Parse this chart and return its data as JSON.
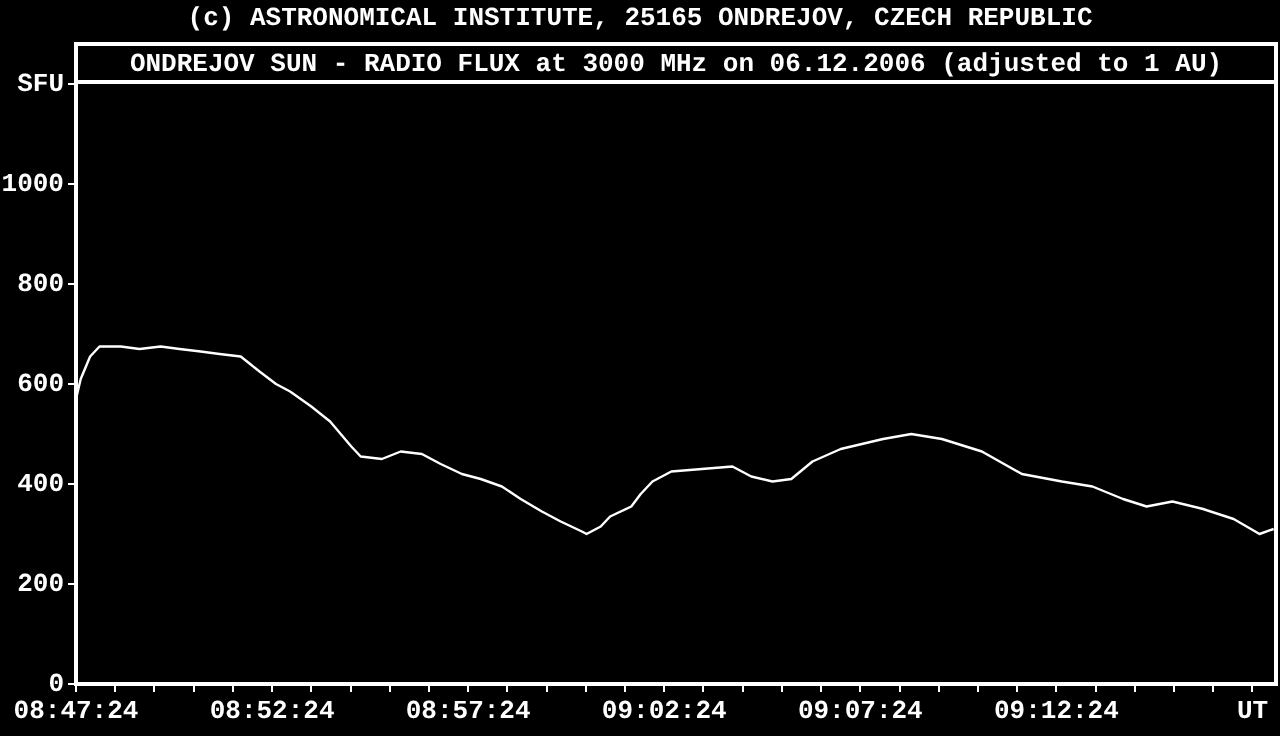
{
  "chart_data": {
    "type": "line",
    "title": "ONDREJOV SUN - RADIO FLUX at 3000 MHz on 06.12.2006 (adjusted to 1 AU)",
    "annotations": [
      "(c) ASTRONOMICAL INSTITUTE, 25165 ONDREJOV, CZECH REPUBLIC"
    ],
    "xlim": [
      8.79,
      9.3
    ],
    "ylim": [
      0,
      1200
    ],
    "yticks": [
      0,
      200,
      400,
      600,
      800,
      1000,
      {
        "value": 1200,
        "label": "SFU"
      }
    ],
    "xticks": [
      {
        "value": 8.79,
        "label": "08:47:24"
      },
      {
        "value": 8.806667,
        "label": null
      },
      {
        "value": 8.823333,
        "label": null
      },
      {
        "value": 8.84,
        "label": null
      },
      {
        "value": 8.856667,
        "label": null
      },
      {
        "value": 8.873333,
        "label": "08:52:24"
      },
      {
        "value": 8.89,
        "label": null
      },
      {
        "value": 8.906667,
        "label": null
      },
      {
        "value": 8.923333,
        "label": null
      },
      {
        "value": 8.94,
        "label": null
      },
      {
        "value": 8.956667,
        "label": "08:57:24"
      },
      {
        "value": 8.973333,
        "label": null
      },
      {
        "value": 8.99,
        "label": null
      },
      {
        "value": 9.006667,
        "label": null
      },
      {
        "value": 9.023333,
        "label": null
      },
      {
        "value": 9.04,
        "label": "09:02:24"
      },
      {
        "value": 9.056667,
        "label": null
      },
      {
        "value": 9.073333,
        "label": null
      },
      {
        "value": 9.09,
        "label": null
      },
      {
        "value": 9.106667,
        "label": null
      },
      {
        "value": 9.123333,
        "label": "09:07:24"
      },
      {
        "value": 9.14,
        "label": null
      },
      {
        "value": 9.156667,
        "label": null
      },
      {
        "value": 9.173333,
        "label": null
      },
      {
        "value": 9.19,
        "label": null
      },
      {
        "value": 9.206667,
        "label": "09:12:24"
      },
      {
        "value": 9.223333,
        "label": null
      },
      {
        "value": 9.24,
        "label": null
      },
      {
        "value": 9.256667,
        "label": null
      },
      {
        "value": 9.273333,
        "label": null
      },
      {
        "value": 9.29,
        "label": "UT"
      }
    ],
    "grid": false,
    "legend": false,
    "marker": "none",
    "line_style": "solid",
    "series": [
      {
        "color": "#ffffff",
        "x": [
          8.79,
          8.792,
          8.796,
          8.8,
          8.809,
          8.817,
          8.826,
          8.834,
          8.843,
          8.851,
          8.86,
          8.864,
          8.868,
          8.875,
          8.881,
          8.89,
          8.898,
          8.907,
          8.911,
          8.92,
          8.928,
          8.937,
          8.945,
          8.954,
          8.962,
          8.971,
          8.979,
          8.988,
          8.996,
          9.005,
          9.007,
          9.013,
          9.017,
          9.026,
          9.03,
          9.035,
          9.043,
          9.056,
          9.069,
          9.077,
          9.086,
          9.094,
          9.103,
          9.115,
          9.133,
          9.145,
          9.158,
          9.175,
          9.192,
          9.209,
          9.222,
          9.235,
          9.245,
          9.256,
          9.269,
          9.282,
          9.293,
          9.299
        ],
        "values": [
          570,
          610,
          655,
          675,
          675,
          670,
          675,
          670,
          665,
          660,
          655,
          640,
          625,
          600,
          585,
          555,
          525,
          475,
          455,
          450,
          465,
          460,
          440,
          420,
          410,
          395,
          370,
          345,
          325,
          305,
          300,
          315,
          335,
          355,
          380,
          405,
          425,
          430,
          435,
          415,
          405,
          410,
          445,
          470,
          490,
          500,
          490,
          465,
          420,
          405,
          395,
          370,
          355,
          365,
          350,
          330,
          300,
          310
        ]
      }
    ]
  }
}
